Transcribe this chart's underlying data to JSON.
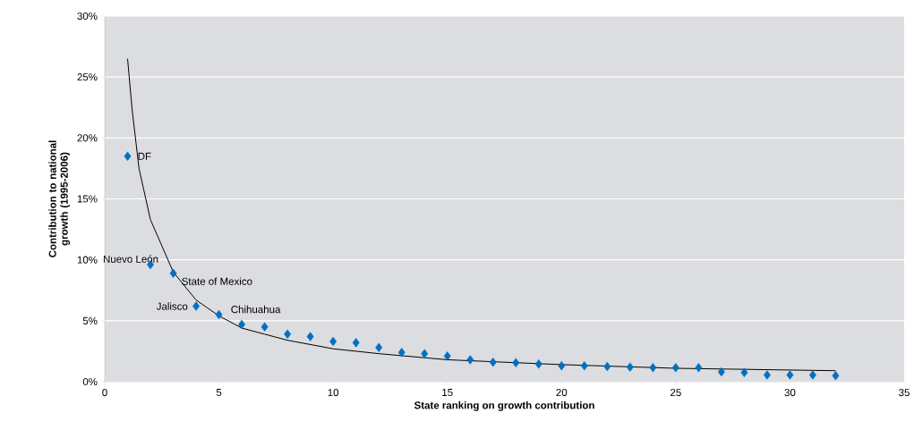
{
  "chart_data": {
    "type": "scatter",
    "xlabel": "State ranking on growth contribution",
    "ylabel": "Contribution to national growth (1995-2006)",
    "series": [
      {
        "color": "#0070c0",
        "marker": "diamond",
        "x": [
          1,
          2,
          3,
          4,
          5,
          6,
          7,
          8,
          9,
          10,
          11,
          12,
          13,
          14,
          15,
          16,
          17,
          18,
          19,
          20,
          21,
          22,
          23,
          24,
          25,
          26,
          27,
          28,
          29,
          30,
          31,
          32
        ],
        "values": [
          18.5,
          9.6,
          8.9,
          6.2,
          5.5,
          4.7,
          4.5,
          3.9,
          3.7,
          3.3,
          3.2,
          2.8,
          2.4,
          2.3,
          2.1,
          1.8,
          1.6,
          1.55,
          1.45,
          1.3,
          1.3,
          1.25,
          1.2,
          1.15,
          1.15,
          1.15,
          0.8,
          0.75,
          0.55,
          0.55,
          0.55,
          0.5
        ]
      },
      {
        "type": "line",
        "color": "#000000",
        "marker": "none",
        "x": [
          1,
          1.2,
          1.5,
          2,
          3,
          4,
          5,
          6,
          7,
          8,
          10,
          12,
          15,
          20,
          25,
          32
        ],
        "values": [
          26.5,
          22.3,
          17.5,
          13.3,
          9.0,
          6.7,
          5.4,
          4.4,
          3.9,
          3.4,
          2.7,
          2.3,
          1.8,
          1.4,
          1.1,
          0.9
        ]
      }
    ],
    "annotations": [
      {
        "text": "DF",
        "x": 1,
        "y": 18.5
      },
      {
        "text": "Nuevo León",
        "x": 2,
        "y": 9.6
      },
      {
        "text": "State of Mexico",
        "x": 3,
        "y": 8.9
      },
      {
        "text": "Jalisco",
        "x": 4,
        "y": 6.2
      },
      {
        "text": "Chihuahua",
        "x": 5,
        "y": 5.5
      }
    ],
    "xlim": [
      0,
      35
    ],
    "xticks": [
      0,
      5,
      10,
      15,
      20,
      25,
      30,
      35
    ],
    "ylim": [
      0,
      30
    ],
    "yticks": [
      {
        "value": 0,
        "label": "0%"
      },
      {
        "value": 5,
        "label": "5%"
      },
      {
        "value": 10,
        "label": "10%"
      },
      {
        "value": 15,
        "label": "15%"
      },
      {
        "value": 20,
        "label": "20%"
      },
      {
        "value": 25,
        "label": "25%"
      },
      {
        "value": 30,
        "label": "30%"
      }
    ],
    "grid": "y"
  }
}
